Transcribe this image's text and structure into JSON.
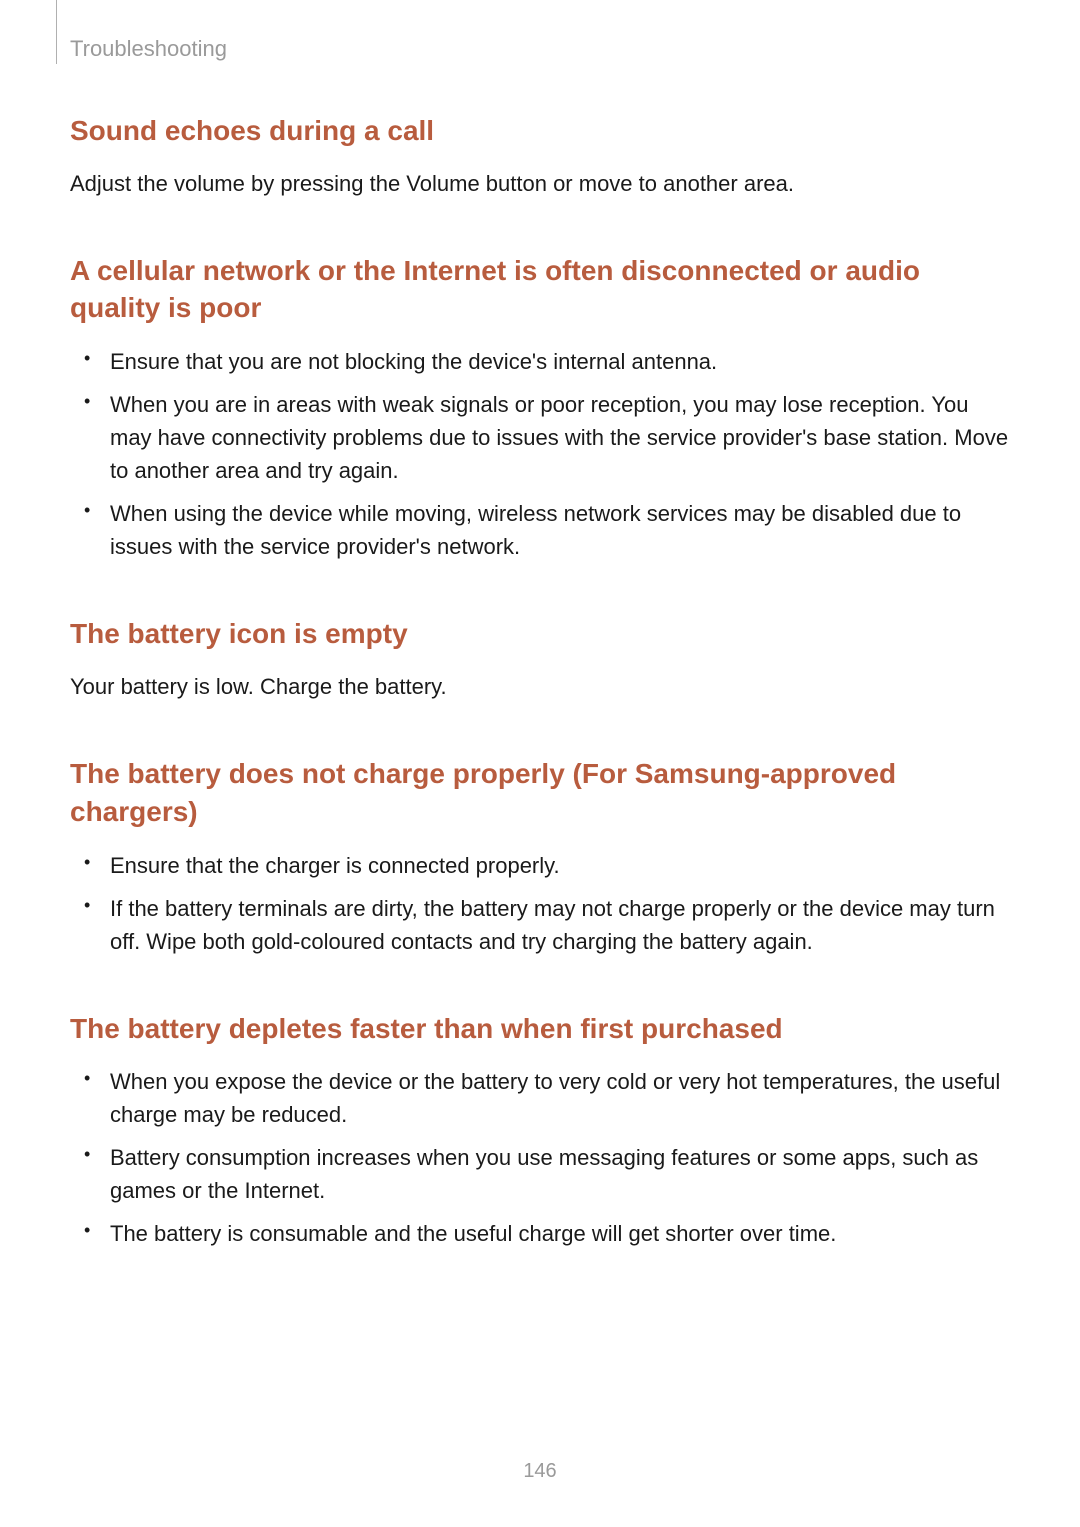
{
  "header": {
    "breadcrumb": "Troubleshooting"
  },
  "sections": {
    "s1": {
      "heading": "Sound echoes during a call",
      "body": "Adjust the volume by pressing the Volume button or move to another area."
    },
    "s2": {
      "heading": "A cellular network or the Internet is often disconnected or audio quality is poor",
      "bullets": [
        "Ensure that you are not blocking the device's internal antenna.",
        "When you are in areas with weak signals or poor reception, you may lose reception. You may have connectivity problems due to issues with the service provider's base station. Move to another area and try again.",
        "When using the device while moving, wireless network services may be disabled due to issues with the service provider's network."
      ]
    },
    "s3": {
      "heading": "The battery icon is empty",
      "body": "Your battery is low. Charge the battery."
    },
    "s4": {
      "heading": "The battery does not charge properly (For Samsung-approved chargers)",
      "bullets": [
        "Ensure that the charger is connected properly.",
        "If the battery terminals are dirty, the battery may not charge properly or the device may turn off. Wipe both gold-coloured contacts and try charging the battery again."
      ]
    },
    "s5": {
      "heading": "The battery depletes faster than when first purchased",
      "bullets": [
        "When you expose the device or the battery to very cold or very hot temperatures, the useful charge may be reduced.",
        "Battery consumption increases when you use messaging features or some apps, such as games or the Internet.",
        "The battery is consumable and the useful charge will get shorter over time."
      ]
    }
  },
  "page_number": "146",
  "colors": {
    "heading": "#b85c3e",
    "body": "#1a1a1a",
    "muted": "#9a9a9a",
    "background": "#ffffff"
  },
  "typography": {
    "heading_fontsize_pt": 21,
    "body_fontsize_pt": 16,
    "header_fontsize_pt": 16,
    "page_number_fontsize_pt": 15
  }
}
